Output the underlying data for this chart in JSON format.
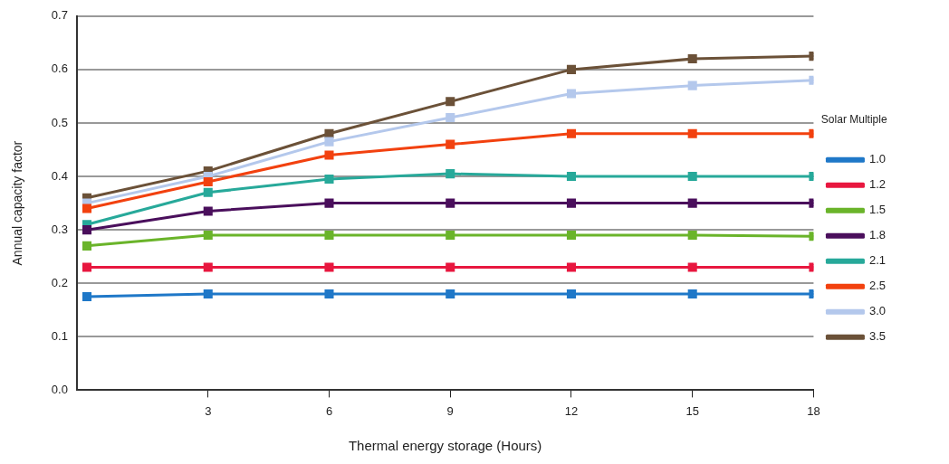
{
  "chart_data": {
    "type": "line",
    "xlabel": "Thermal energy storage (Hours)",
    "ylabel": "Annual capacity factor",
    "legend_title": "Solar Multiple",
    "x": [
      0,
      3,
      6,
      9,
      12,
      15,
      18
    ],
    "xlim": [
      -0.25,
      18
    ],
    "xticks": [
      3,
      6,
      9,
      12,
      15,
      18
    ],
    "ylim": [
      0,
      0.7
    ],
    "yticks": [
      {
        "value": 0,
        "label": "0.0"
      },
      0.1,
      0.2,
      0.3,
      0.4,
      0.5,
      0.6,
      0.7
    ],
    "grid": "y",
    "legend": "right",
    "marker": "square",
    "line_style": "solid",
    "series": [
      {
        "name": "1.0",
        "color": "#1f78c8",
        "values": [
          0.175,
          0.18,
          0.18,
          0.18,
          0.18,
          0.18,
          0.18
        ]
      },
      {
        "name": "1.2",
        "color": "#e8173f",
        "values": [
          0.23,
          0.23,
          0.23,
          0.23,
          0.23,
          0.23,
          0.23
        ]
      },
      {
        "name": "1.5",
        "color": "#6ab42a",
        "values": [
          0.27,
          0.29,
          0.29,
          0.29,
          0.29,
          0.29,
          0.288
        ]
      },
      {
        "name": "1.8",
        "color": "#4a0f5c",
        "values": [
          0.3,
          0.335,
          0.35,
          0.35,
          0.35,
          0.35,
          0.35
        ]
      },
      {
        "name": "2.1",
        "color": "#27a99a",
        "values": [
          0.31,
          0.37,
          0.395,
          0.405,
          0.4,
          0.4,
          0.4
        ]
      },
      {
        "name": "2.5",
        "color": "#f2410f",
        "values": [
          0.34,
          0.39,
          0.44,
          0.46,
          0.48,
          0.48,
          0.48
        ]
      },
      {
        "name": "3.0",
        "color": "#b4c8ec",
        "values": [
          0.35,
          0.4,
          0.465,
          0.51,
          0.555,
          0.57,
          0.58
        ]
      },
      {
        "name": "3.5",
        "color": "#6b5138",
        "values": [
          0.36,
          0.41,
          0.48,
          0.54,
          0.6,
          0.62,
          0.625
        ]
      }
    ]
  }
}
